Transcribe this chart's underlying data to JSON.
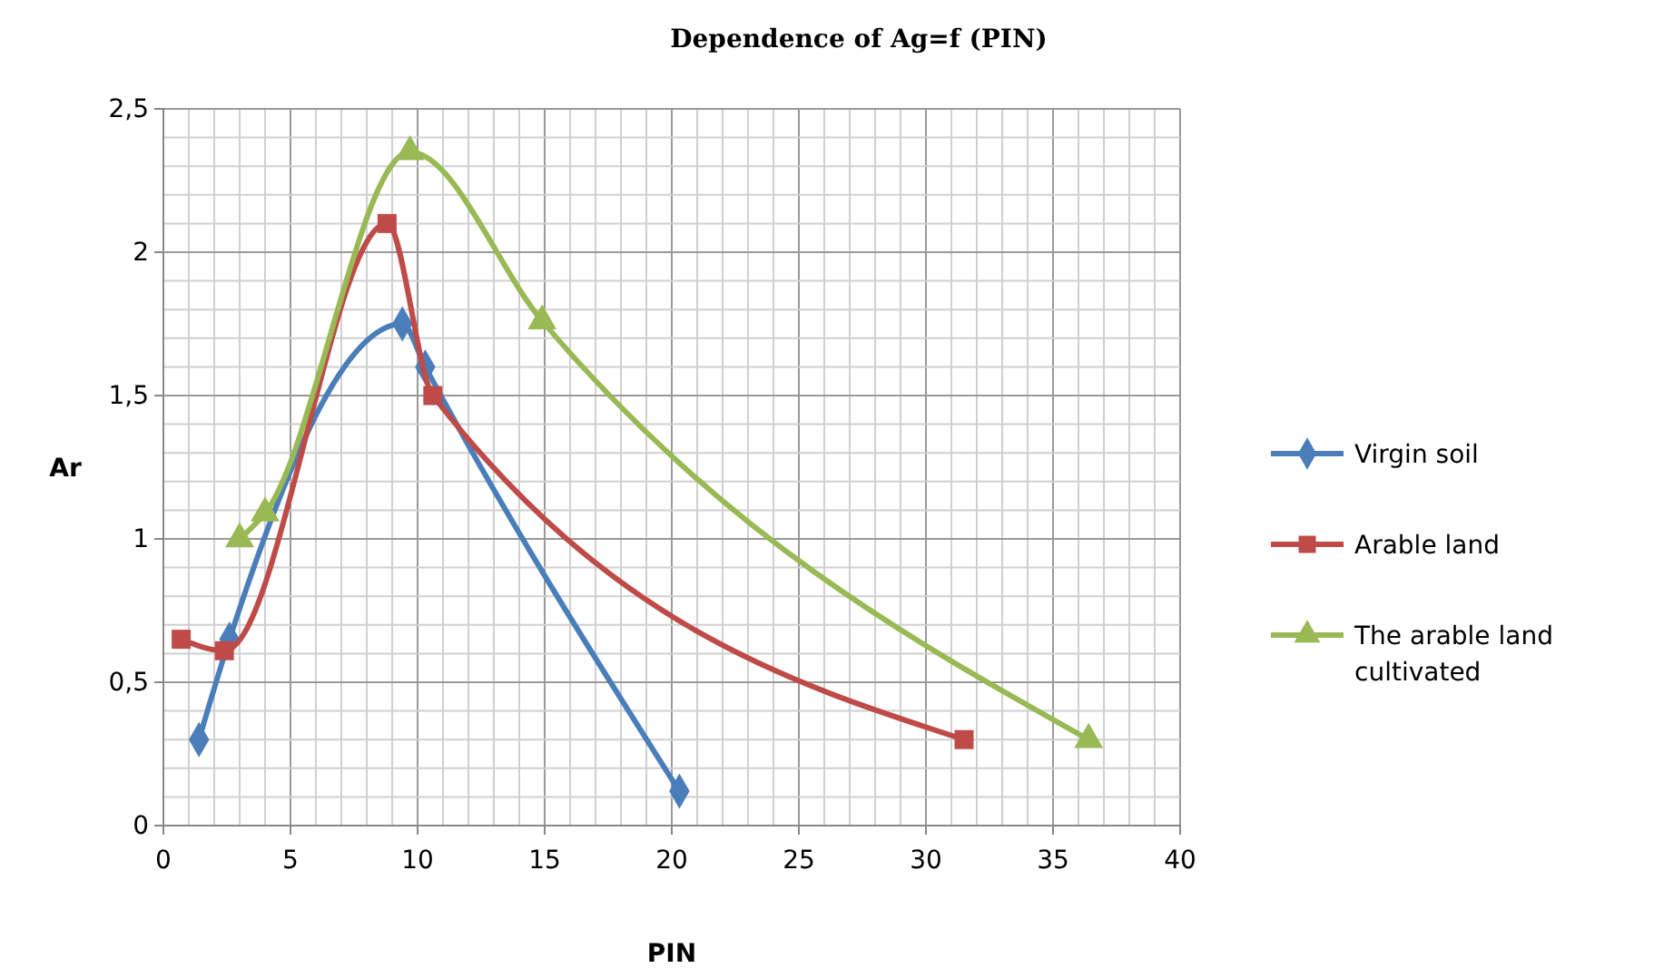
{
  "chart_data": {
    "type": "line",
    "title": "Dependence of Ag=f (PIN)",
    "xlabel": "PIN",
    "ylabel": "Ar",
    "xlim": [
      0,
      40
    ],
    "xticks": [
      0,
      5,
      10,
      15,
      20,
      25,
      30,
      35,
      40
    ],
    "ylim": [
      0,
      2.5
    ],
    "yticks": [
      0,
      {
        "value": 0.5,
        "label": "0,5"
      },
      1,
      {
        "value": 1.5,
        "label": "1,5"
      },
      2,
      {
        "value": 2.5,
        "label": "2,5"
      }
    ],
    "grid": true,
    "legend": "right",
    "series": [
      {
        "name": "Virgin soil",
        "color": "#4a7ebb",
        "marker": "diamond",
        "x": [
          1.4,
          2.6,
          9.4,
          10.3,
          20.3
        ],
        "values": [
          0.3,
          0.65,
          1.75,
          1.6,
          0.12
        ]
      },
      {
        "name": "Arable land",
        "color": "#be4b48",
        "marker": "square",
        "x": [
          0.7,
          2.4,
          8.8,
          10.6,
          31.5
        ],
        "values": [
          0.65,
          0.61,
          2.1,
          1.5,
          0.3
        ]
      },
      {
        "name": "The arable land cultivated",
        "color": "#98b954",
        "marker": "triangle",
        "x": [
          3,
          4,
          9.7,
          14.9,
          36.4
        ],
        "values": [
          1.0,
          1.09,
          2.35,
          1.76,
          0.3
        ]
      }
    ]
  }
}
